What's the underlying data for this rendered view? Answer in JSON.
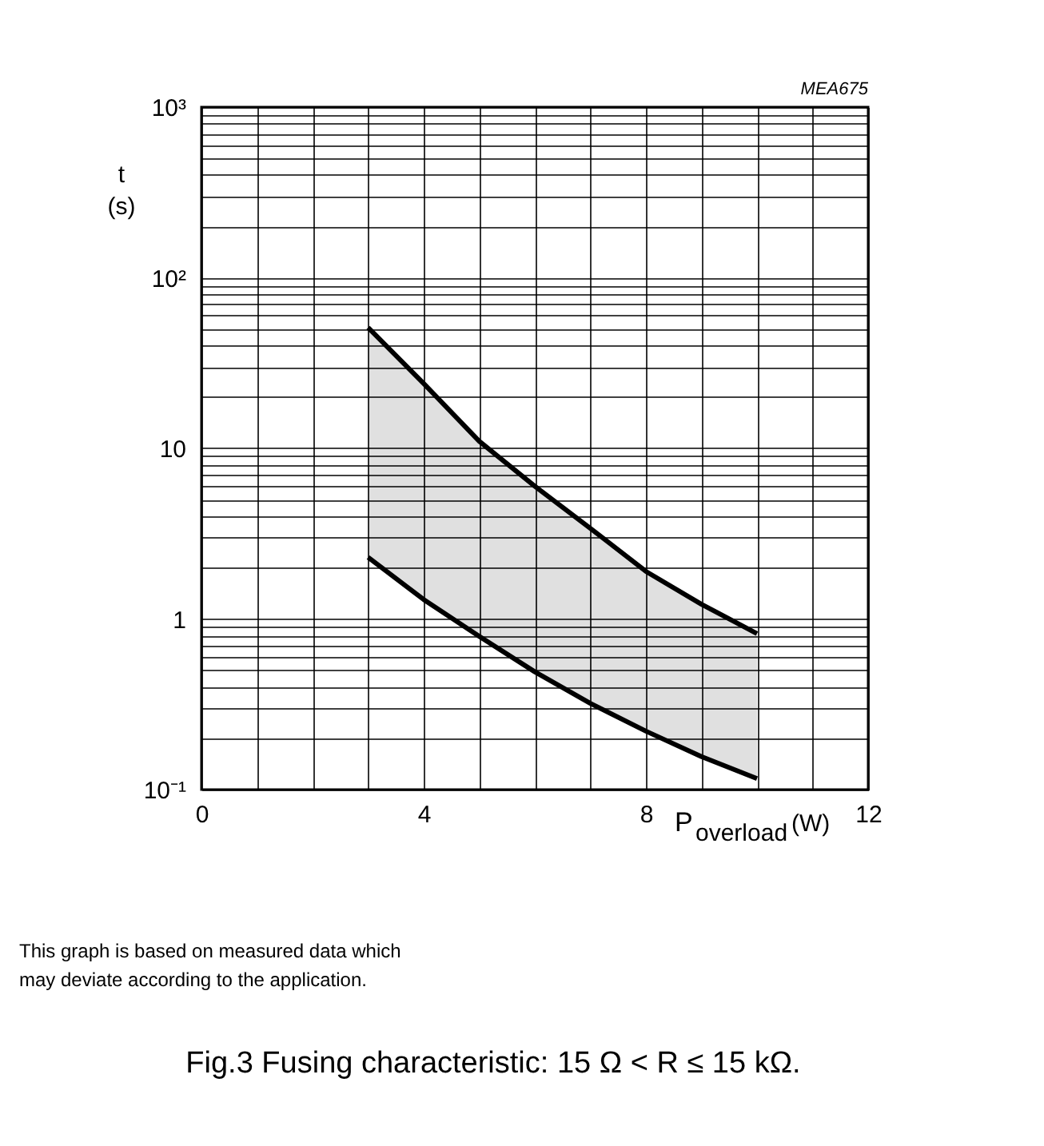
{
  "chart_data": {
    "type": "line",
    "title": "Fig.3  Fusing characteristic: 15 Ω < R ≤ 15 kΩ.",
    "xlabel": "P$_{overload}$(W)",
    "ylabel": "t (s)",
    "annotations": [
      "MEA675",
      "This graph is based on measured data which may deviate according to the application."
    ],
    "x": [
      3,
      4,
      5,
      6,
      7,
      8,
      9,
      10
    ],
    "series": [
      {
        "color": "#000000",
        "values": [
          51,
          24,
          11,
          6.0,
          3.4,
          1.9,
          1.22,
          0.82
        ],
        "upper": [
          51,
          24,
          11,
          6.0,
          3.4,
          1.9,
          1.22,
          0.82
        ],
        "lower": [
          2.3,
          1.3,
          0.79,
          0.49,
          0.32,
          0.22,
          0.156,
          0.116
        ]
      },
      {
        "color": "#000000",
        "values": [
          2.3,
          1.3,
          0.79,
          0.49,
          0.32,
          0.22,
          0.156,
          0.116
        ]
      }
    ],
    "log": "y",
    "grid": true,
    "marker": "none",
    "line_style": "solid",
    "xlim": [
      0,
      12
    ],
    "ylim": [
      0.1,
      1000
    ],
    "xticks": [
      0,
      {
        "value": 1,
        "label": null
      },
      {
        "value": 2,
        "label": null
      },
      {
        "value": 3,
        "label": null
      },
      4,
      {
        "value": 5,
        "label": null
      },
      {
        "value": 6,
        "label": null
      },
      {
        "value": 7,
        "label": null
      },
      8,
      {
        "value": 9,
        "label": null
      },
      {
        "value": 10,
        "label": null
      },
      {
        "value": 11,
        "label": null
      },
      12
    ],
    "yticks": [
      {
        "value": 0.1,
        "label": "10⁻¹"
      },
      {
        "value": 0.2,
        "label": null
      },
      {
        "value": 0.3,
        "label": null
      },
      {
        "value": 0.4,
        "label": null
      },
      {
        "value": 0.5,
        "label": null
      },
      {
        "value": 0.6,
        "label": null
      },
      {
        "value": 0.7,
        "label": null
      },
      {
        "value": 0.8,
        "label": null
      },
      {
        "value": 0.9,
        "label": null
      },
      {
        "value": 1,
        "label": "1"
      },
      {
        "value": 2,
        "label": null
      },
      {
        "value": 3,
        "label": null
      },
      {
        "value": 4,
        "label": null
      },
      {
        "value": 5,
        "label": null
      },
      {
        "value": 6,
        "label": null
      },
      {
        "value": 7,
        "label": null
      },
      {
        "value": 8,
        "label": null
      },
      {
        "value": 9,
        "label": null
      },
      {
        "value": 10,
        "label": "10"
      },
      {
        "value": 20,
        "label": null
      },
      {
        "value": 30,
        "label": null
      },
      {
        "value": 40,
        "label": null
      },
      {
        "value": 50,
        "label": null
      },
      {
        "value": 60,
        "label": null
      },
      {
        "value": 70,
        "label": null
      },
      {
        "value": 80,
        "label": null
      },
      {
        "value": 90,
        "label": null
      },
      {
        "value": 100,
        "label": "10²"
      },
      {
        "value": 200,
        "label": null
      },
      {
        "value": 300,
        "label": null
      },
      {
        "value": 400,
        "label": null
      },
      {
        "value": 500,
        "label": null
      },
      {
        "value": 600,
        "label": null
      },
      {
        "value": 700,
        "label": null
      },
      {
        "value": 800,
        "label": null
      },
      {
        "value": 900,
        "label": null
      },
      {
        "value": 1000,
        "label": "10³"
      }
    ]
  }
}
